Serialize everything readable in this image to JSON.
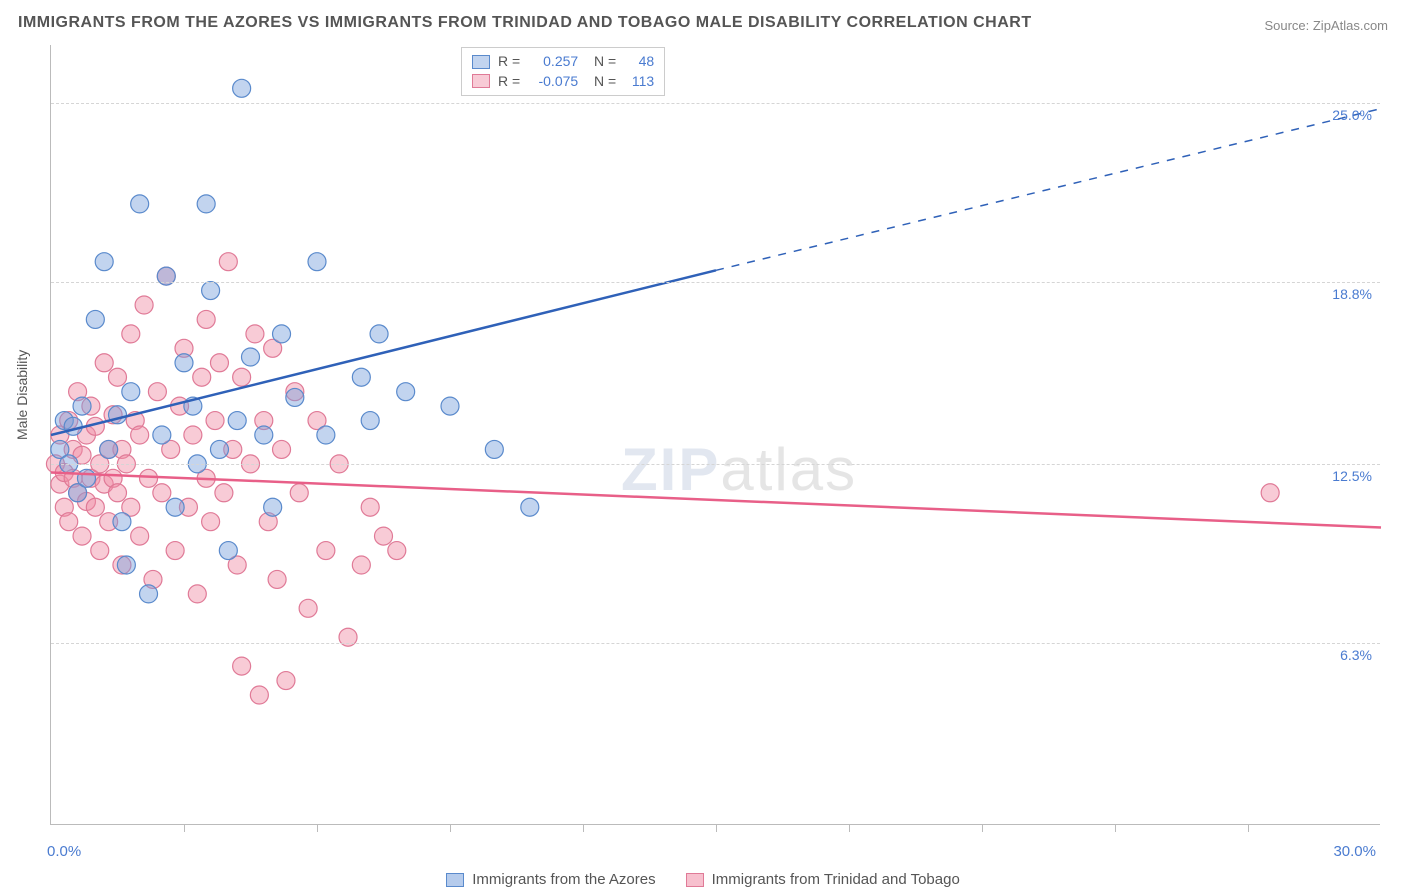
{
  "title": "IMMIGRANTS FROM THE AZORES VS IMMIGRANTS FROM TRINIDAD AND TOBAGO MALE DISABILITY CORRELATION CHART",
  "source": "Source: ZipAtlas.com",
  "watermark_bold": "ZIP",
  "watermark_thin": "atlas",
  "y_axis_title": "Male Disability",
  "chart": {
    "type": "scatter-with-regression",
    "background_color": "#ffffff",
    "grid_color": "#d5d5d5",
    "axis_color": "#bbbbbb",
    "xlim": [
      0,
      30
    ],
    "ylim": [
      0,
      27
    ],
    "x_ticks": [
      3,
      6,
      9,
      12,
      15,
      18,
      21,
      24,
      27
    ],
    "y_gridlines": [
      {
        "value": 6.3,
        "label": "6.3%"
      },
      {
        "value": 12.5,
        "label": "12.5%"
      },
      {
        "value": 18.8,
        "label": "18.8%"
      },
      {
        "value": 25.0,
        "label": "25.0%"
      }
    ],
    "x_start_label": "0.0%",
    "x_end_label": "30.0%",
    "label_color": "#4a7bd0",
    "label_fontsize": 14,
    "marker_radius": 9,
    "marker_stroke_width": 1.2,
    "line_width": 2.5
  },
  "series": [
    {
      "name": "Immigrants from the Azores",
      "fill_color": "rgba(120,160,220,0.45)",
      "stroke_color": "#5a8acc",
      "line_color": "#2f61b8",
      "r_value": "0.257",
      "n_value": "48",
      "regression": {
        "x1": 0,
        "y1": 13.5,
        "x2_solid": 15,
        "y2_solid": 19.2,
        "x2_dash": 30,
        "y2_dash": 24.8
      },
      "points": [
        [
          0.2,
          13.0
        ],
        [
          0.3,
          14.0
        ],
        [
          0.4,
          12.5
        ],
        [
          0.5,
          13.8
        ],
        [
          0.6,
          11.5
        ],
        [
          0.7,
          14.5
        ],
        [
          0.8,
          12.0
        ],
        [
          1.0,
          17.5
        ],
        [
          1.2,
          19.5
        ],
        [
          1.3,
          13.0
        ],
        [
          1.5,
          14.2
        ],
        [
          1.6,
          10.5
        ],
        [
          1.7,
          9.0
        ],
        [
          1.8,
          15.0
        ],
        [
          2.0,
          21.5
        ],
        [
          2.2,
          8.0
        ],
        [
          2.5,
          13.5
        ],
        [
          2.6,
          19.0
        ],
        [
          2.8,
          11.0
        ],
        [
          3.0,
          16.0
        ],
        [
          3.2,
          14.5
        ],
        [
          3.3,
          12.5
        ],
        [
          3.5,
          21.5
        ],
        [
          3.6,
          18.5
        ],
        [
          3.8,
          13.0
        ],
        [
          4.0,
          9.5
        ],
        [
          4.2,
          14.0
        ],
        [
          4.3,
          25.5
        ],
        [
          4.5,
          16.2
        ],
        [
          4.8,
          13.5
        ],
        [
          5.0,
          11.0
        ],
        [
          5.2,
          17.0
        ],
        [
          5.5,
          14.8
        ],
        [
          6.0,
          19.5
        ],
        [
          6.2,
          13.5
        ],
        [
          7.0,
          15.5
        ],
        [
          7.2,
          14.0
        ],
        [
          7.4,
          17.0
        ],
        [
          8.0,
          15.0
        ],
        [
          9.0,
          14.5
        ],
        [
          10.0,
          13.0
        ],
        [
          10.8,
          11.0
        ]
      ]
    },
    {
      "name": "Immigrants from Trinidad and Tobago",
      "fill_color": "rgba(240,140,165,0.45)",
      "stroke_color": "#e07a97",
      "line_color": "#e85f88",
      "r_value": "-0.075",
      "n_value": "113",
      "regression": {
        "x1": 0,
        "y1": 12.2,
        "x2_solid": 30,
        "y2_solid": 10.3,
        "x2_dash": 30,
        "y2_dash": 10.3
      },
      "points": [
        [
          0.1,
          12.5
        ],
        [
          0.2,
          11.8
        ],
        [
          0.2,
          13.5
        ],
        [
          0.3,
          11.0
        ],
        [
          0.3,
          12.2
        ],
        [
          0.4,
          14.0
        ],
        [
          0.4,
          10.5
        ],
        [
          0.5,
          13.0
        ],
        [
          0.5,
          12.0
        ],
        [
          0.6,
          11.5
        ],
        [
          0.6,
          15.0
        ],
        [
          0.7,
          12.8
        ],
        [
          0.7,
          10.0
        ],
        [
          0.8,
          13.5
        ],
        [
          0.8,
          11.2
        ],
        [
          0.9,
          14.5
        ],
        [
          0.9,
          12.0
        ],
        [
          1.0,
          11.0
        ],
        [
          1.0,
          13.8
        ],
        [
          1.1,
          9.5
        ],
        [
          1.1,
          12.5
        ],
        [
          1.2,
          16.0
        ],
        [
          1.2,
          11.8
        ],
        [
          1.3,
          13.0
        ],
        [
          1.3,
          10.5
        ],
        [
          1.4,
          14.2
        ],
        [
          1.4,
          12.0
        ],
        [
          1.5,
          11.5
        ],
        [
          1.5,
          15.5
        ],
        [
          1.6,
          9.0
        ],
        [
          1.6,
          13.0
        ],
        [
          1.7,
          12.5
        ],
        [
          1.8,
          17.0
        ],
        [
          1.8,
          11.0
        ],
        [
          1.9,
          14.0
        ],
        [
          2.0,
          10.0
        ],
        [
          2.0,
          13.5
        ],
        [
          2.1,
          18.0
        ],
        [
          2.2,
          12.0
        ],
        [
          2.3,
          8.5
        ],
        [
          2.4,
          15.0
        ],
        [
          2.5,
          11.5
        ],
        [
          2.6,
          19.0
        ],
        [
          2.7,
          13.0
        ],
        [
          2.8,
          9.5
        ],
        [
          2.9,
          14.5
        ],
        [
          3.0,
          16.5
        ],
        [
          3.1,
          11.0
        ],
        [
          3.2,
          13.5
        ],
        [
          3.3,
          8.0
        ],
        [
          3.4,
          15.5
        ],
        [
          3.5,
          12.0
        ],
        [
          3.5,
          17.5
        ],
        [
          3.6,
          10.5
        ],
        [
          3.7,
          14.0
        ],
        [
          3.8,
          16.0
        ],
        [
          3.9,
          11.5
        ],
        [
          4.0,
          19.5
        ],
        [
          4.1,
          13.0
        ],
        [
          4.2,
          9.0
        ],
        [
          4.3,
          15.5
        ],
        [
          4.3,
          5.5
        ],
        [
          4.5,
          12.5
        ],
        [
          4.6,
          17.0
        ],
        [
          4.7,
          4.5
        ],
        [
          4.8,
          14.0
        ],
        [
          4.9,
          10.5
        ],
        [
          5.0,
          16.5
        ],
        [
          5.1,
          8.5
        ],
        [
          5.2,
          13.0
        ],
        [
          5.3,
          5.0
        ],
        [
          5.5,
          15.0
        ],
        [
          5.6,
          11.5
        ],
        [
          5.8,
          7.5
        ],
        [
          6.0,
          14.0
        ],
        [
          6.2,
          9.5
        ],
        [
          6.5,
          12.5
        ],
        [
          6.7,
          6.5
        ],
        [
          7.0,
          9.0
        ],
        [
          7.2,
          11.0
        ],
        [
          7.5,
          10.0
        ],
        [
          7.8,
          9.5
        ],
        [
          27.5,
          11.5
        ]
      ]
    }
  ],
  "bottom_legend": [
    {
      "label": "Immigrants from the Azores",
      "fill": "rgba(120,160,220,0.55)",
      "stroke": "#5a8acc"
    },
    {
      "label": "Immigrants from Trinidad and Tobago",
      "fill": "rgba(240,140,165,0.55)",
      "stroke": "#e07a97"
    }
  ]
}
